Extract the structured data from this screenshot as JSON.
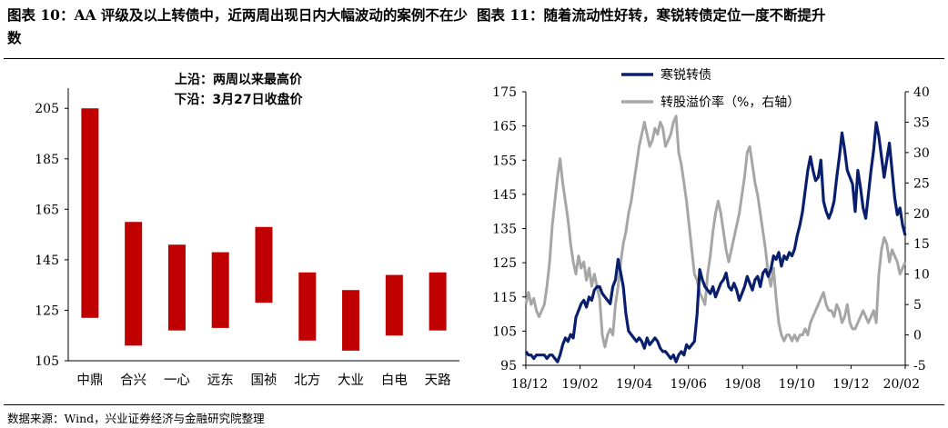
{
  "header": {
    "left_title": "图表 10：AA 评级及以上转债中，近两周出现日内大幅波动的案例不在少数",
    "right_title": "图表 11：随着流动性好转，寒锐转债定位一度不断提升"
  },
  "footer": {
    "source": "数据来源：Wind，兴业证券经济与金融研究院整理"
  },
  "chart_data": [
    {
      "type": "bar",
      "annotation_top": "上沿：两周以来最高价",
      "annotation_bottom": "下沿：3月27日收盘价",
      "categories": [
        "中鼎",
        "合兴",
        "一心",
        "远东",
        "国祯",
        "北方",
        "大业",
        "白电",
        "天路"
      ],
      "ranges": [
        [
          122,
          205
        ],
        [
          111,
          160
        ],
        [
          117,
          151
        ],
        [
          118,
          148
        ],
        [
          128,
          158
        ],
        [
          113,
          140
        ],
        [
          109,
          133
        ],
        [
          115,
          139
        ],
        [
          117,
          140
        ]
      ],
      "bar_color": "#c00000",
      "yticks": [
        105,
        125,
        145,
        165,
        185,
        205
      ],
      "ylim": [
        105,
        213
      ]
    },
    {
      "type": "line",
      "x_ticks": [
        "18/12",
        "19/02",
        "19/04",
        "19/06",
        "19/08",
        "19/10",
        "19/12",
        "20/02"
      ],
      "y_left_ticks": [
        95,
        105,
        115,
        125,
        135,
        145,
        155,
        165,
        175
      ],
      "y_left_lim": [
        95,
        175
      ],
      "y_right_ticks": [
        -5,
        0,
        5,
        10,
        15,
        20,
        25,
        30,
        35,
        40
      ],
      "y_right_lim": [
        -5,
        40
      ],
      "series": [
        {
          "name": "寒锐转债",
          "axis": "left",
          "color": "#0a1e6e",
          "values": [
            99,
            98,
            98,
            97,
            98,
            98,
            98,
            98,
            97,
            98,
            98,
            97,
            96,
            98,
            101,
            103,
            102,
            104,
            103,
            109,
            111,
            113,
            114,
            112,
            115,
            114,
            117,
            118,
            118,
            116,
            115,
            114,
            113,
            118,
            120,
            126,
            122,
            118,
            110,
            105,
            104,
            103,
            102,
            103,
            102,
            100,
            103,
            101,
            102,
            103,
            102,
            100,
            99,
            99,
            98,
            97,
            98,
            96,
            98,
            99,
            98,
            101,
            100,
            101,
            102,
            110,
            123,
            120,
            118,
            117,
            116,
            118,
            115,
            117,
            119,
            120,
            122,
            118,
            117,
            119,
            117,
            114,
            116,
            118,
            121,
            119,
            117,
            120,
            121,
            118,
            122,
            123,
            121,
            123,
            127,
            126,
            128,
            124,
            127,
            126,
            128,
            127,
            129,
            133,
            136,
            140,
            146,
            152,
            156,
            152,
            149,
            150,
            155,
            143,
            140,
            138,
            140,
            143,
            150,
            156,
            163,
            158,
            152,
            150,
            148,
            140,
            152,
            147,
            141,
            138,
            145,
            152,
            158,
            166,
            162,
            156,
            150,
            155,
            160,
            152,
            144,
            139,
            141,
            136,
            133
          ]
        },
        {
          "name": "转股溢价率（%，右轴）",
          "axis": "right",
          "color": "#a6a6a6",
          "values": [
            5,
            7,
            5,
            6,
            4,
            3,
            4,
            5,
            8,
            12,
            18,
            22,
            26,
            29,
            25,
            22,
            19,
            15,
            12,
            10,
            13,
            11,
            12,
            9,
            11,
            8,
            10,
            8,
            6,
            0,
            -2,
            0,
            1,
            0,
            5,
            8,
            12,
            15,
            17,
            20,
            22,
            25,
            28,
            31,
            33,
            35,
            33,
            31,
            32,
            34,
            33,
            35,
            34,
            31,
            32,
            33,
            35,
            36,
            30,
            28,
            25,
            22,
            18,
            14,
            10,
            9,
            7,
            6,
            5,
            10,
            13,
            17,
            20,
            22,
            20,
            17,
            14,
            12,
            14,
            16,
            18,
            20,
            23,
            26,
            30,
            31,
            28,
            25,
            23,
            20,
            17,
            14,
            10,
            8,
            11,
            6,
            2,
            0,
            -1,
            0,
            0,
            -1,
            0,
            -1,
            0,
            0,
            1,
            0,
            2,
            3,
            4,
            5,
            6,
            7,
            5,
            4,
            4,
            3,
            5,
            4,
            2,
            3,
            5,
            2,
            1,
            1,
            2,
            3,
            4,
            3,
            2,
            3,
            4,
            2,
            10,
            14,
            16,
            15,
            12,
            14,
            13,
            12,
            10,
            11,
            12
          ]
        }
      ]
    }
  ]
}
